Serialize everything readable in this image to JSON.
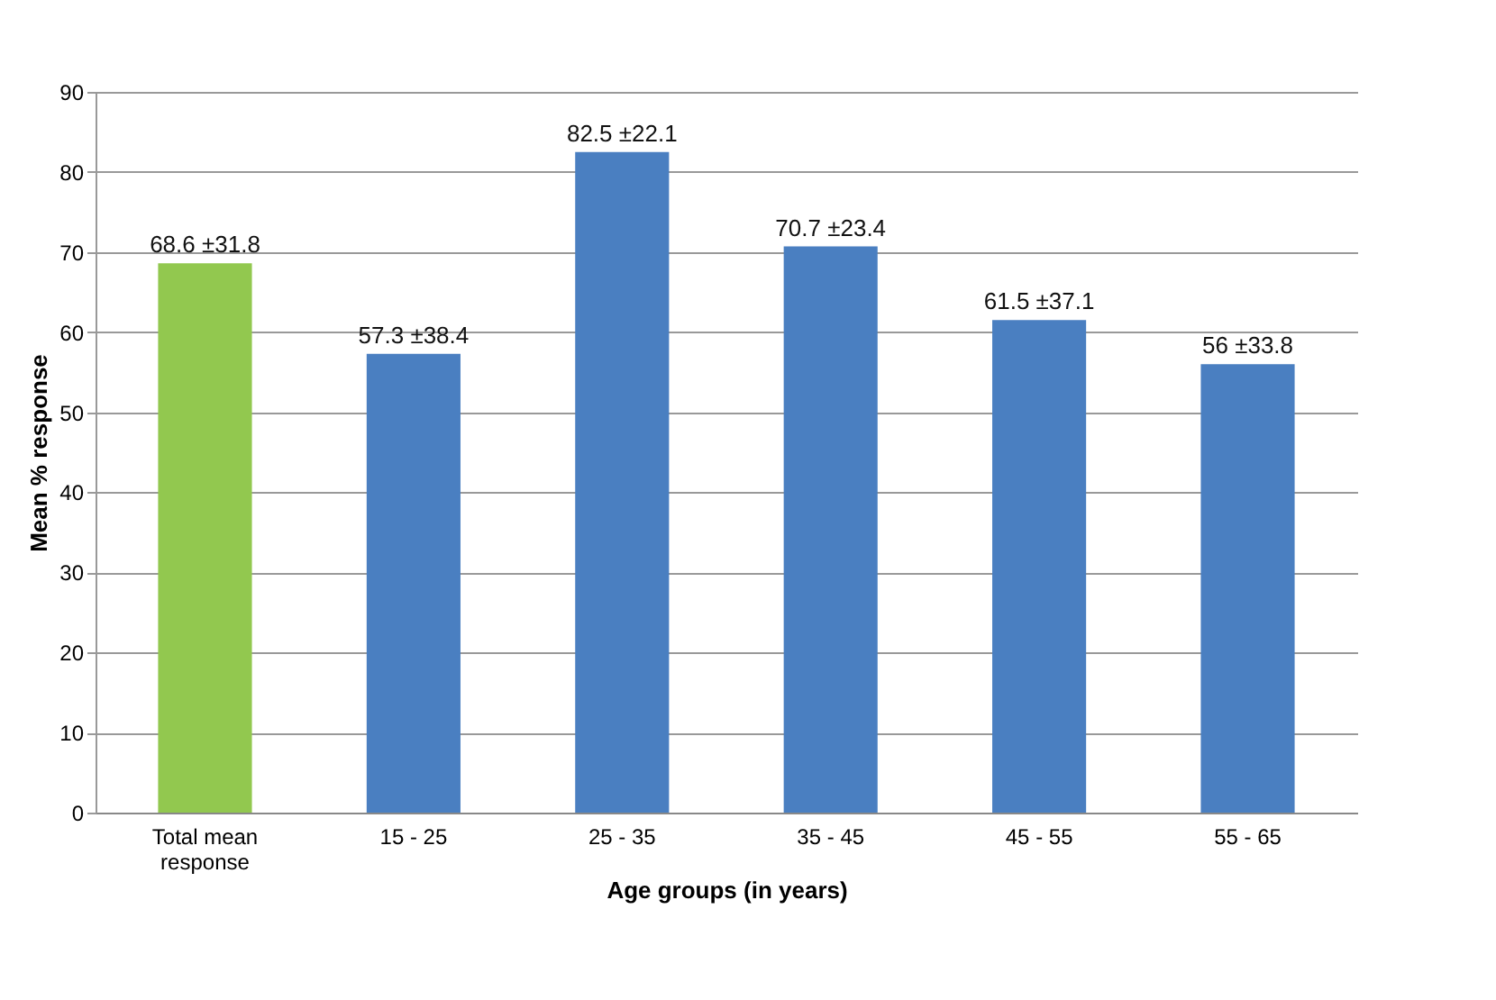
{
  "chart_data": {
    "type": "bar",
    "xlabel": "Age groups (in years)",
    "ylabel": "Mean % response",
    "categories": [
      "Total mean response",
      "15 - 25",
      "25 - 35",
      "35 - 45",
      "45 - 55",
      "55 - 65"
    ],
    "values": [
      68.6,
      57.3,
      82.5,
      70.7,
      61.5,
      56
    ],
    "colors": [
      "#92c84f",
      "#4a7fc1",
      "#4a7fc1",
      "#4a7fc1",
      "#4a7fc1",
      "#4a7fc1"
    ],
    "value_labels": [
      "68.6 ±31.8",
      "57.3 ±38.4",
      "82.5 ±22.1",
      "70.7 ±23.4",
      "61.5 ±37.1",
      "56 ±33.8"
    ],
    "ylim": [
      0,
      90
    ],
    "yticks": [
      0,
      10,
      20,
      30,
      40,
      50,
      60,
      70,
      80,
      90
    ],
    "grid": "y",
    "legend": false
  }
}
